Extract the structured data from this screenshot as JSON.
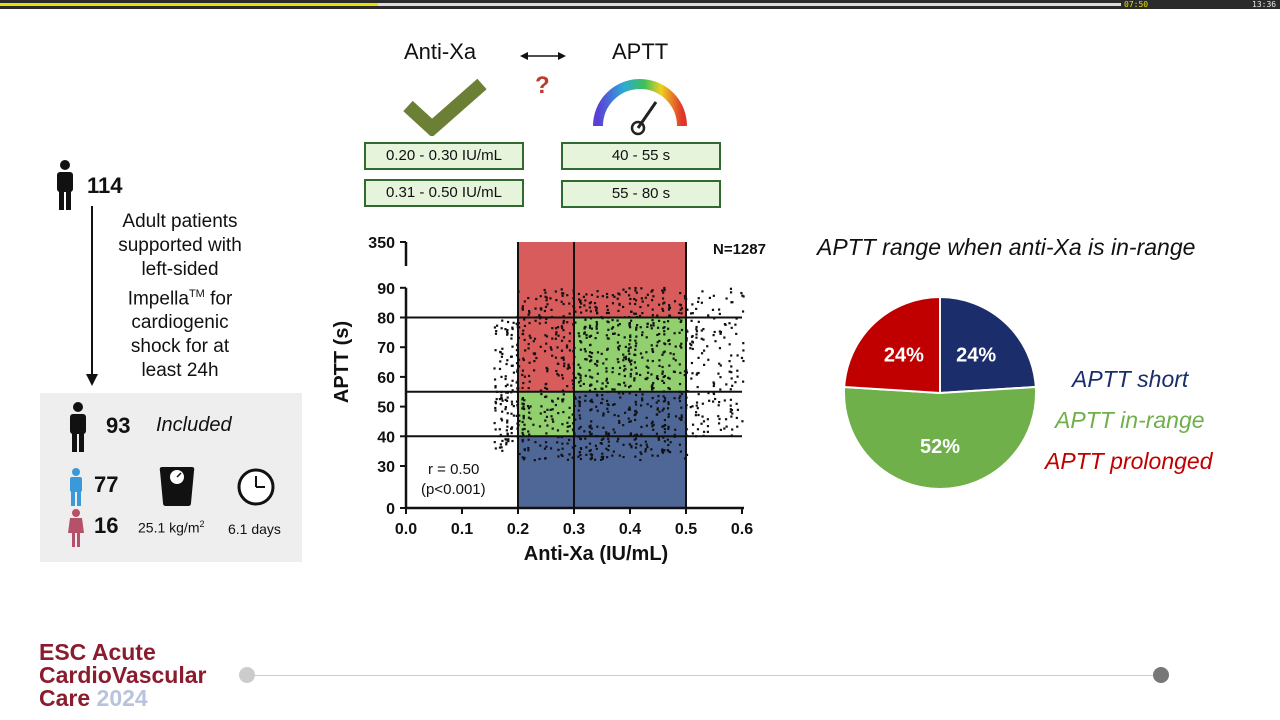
{
  "player": {
    "elapsed": "07:50",
    "total": "13:36",
    "progress": 0.295,
    "buffered": 0.876
  },
  "header": {
    "antixa_label": "Anti-Xa",
    "aptt_label": "APTT",
    "question_mark": "?",
    "antixa_ranges": [
      "0.20 - 0.30 IU/mL",
      "0.31 - 0.50 IU/mL"
    ],
    "aptt_ranges": [
      "40 - 55 s",
      "55 - 80 s"
    ],
    "icons": [
      "check-icon",
      "double-arrow-icon",
      "gauge-icon"
    ],
    "colors": {
      "check": "#6b7f35",
      "question": "#c0392b"
    }
  },
  "patients": {
    "total": "114",
    "description": [
      "Adult patients",
      "supported with",
      "left-sided",
      "Impella",
      "TM",
      " for",
      "cardiogenic",
      "shock for at",
      "least 24h"
    ],
    "included": "93",
    "included_label": "Included",
    "male": "77",
    "female": "16",
    "bmi": "25.1 kg/m",
    "bmi_sup": "2",
    "duration": "6.1 days",
    "icons": [
      "person-icon",
      "down-arrow-icon",
      "male-icon",
      "female-icon",
      "scale-icon",
      "clock-icon"
    ],
    "colors": {
      "male": "#3a9ad9",
      "female": "#b5526a"
    }
  },
  "chart_data": [
    {
      "type": "scatter",
      "title": "",
      "xlabel": "Anti-Xa (IU/mL)",
      "ylabel": "APTT (s)",
      "xlim": [
        0.0,
        0.6
      ],
      "x_ticks": [
        "0.0",
        "0.1",
        "0.2",
        "0.3",
        "0.4",
        "0.5",
        "0.6"
      ],
      "y_ticks": [
        "0",
        "30",
        "40",
        "50",
        "60",
        "70",
        "80",
        "90",
        "350"
      ],
      "axis_break": [
        90,
        350
      ],
      "n_label": "N=1287",
      "annotation": [
        "r = 0.50",
        "(p<0.001)"
      ],
      "vertical_lines": [
        0.2,
        0.3,
        0.5
      ],
      "horizontal_lines": [
        40,
        55,
        80
      ],
      "regions": [
        {
          "x": [
            0.2,
            0.5
          ],
          "y": [
            80,
            350
          ],
          "color": "#d95c5c"
        },
        {
          "x": [
            0.2,
            0.3
          ],
          "y": [
            55,
            80
          ],
          "color": "#d95c5c"
        },
        {
          "x": [
            0.3,
            0.5
          ],
          "y": [
            55,
            80
          ],
          "color": "#92cf6f"
        },
        {
          "x": [
            0.2,
            0.3
          ],
          "y": [
            40,
            55
          ],
          "color": "#92cf6f"
        },
        {
          "x": [
            0.3,
            0.5
          ],
          "y": [
            40,
            55
          ],
          "color": "#4f6797"
        },
        {
          "x": [
            0.2,
            0.5
          ],
          "y": [
            0,
            40
          ],
          "color": "#4f6797"
        }
      ],
      "point_clusters": [
        {
          "x": [
            0.16,
            0.2
          ],
          "y": [
            35,
            80
          ],
          "count": 120
        },
        {
          "x": [
            0.2,
            0.3
          ],
          "y": [
            32,
            90
          ],
          "count": 260
        },
        {
          "x": [
            0.3,
            0.5
          ],
          "y": [
            32,
            90
          ],
          "count": 620
        },
        {
          "x": [
            0.5,
            0.6
          ],
          "y": [
            40,
            90
          ],
          "count": 160
        }
      ]
    },
    {
      "type": "pie",
      "title": "APTT range when anti-Xa is in-range",
      "slices": [
        {
          "label": "APTT short",
          "value": 24,
          "display": "24%",
          "color": "#1b2e6b"
        },
        {
          "label": "APTT in-range",
          "value": 52,
          "display": "52%",
          "color": "#6fb04a"
        },
        {
          "label": "APTT prolonged",
          "value": 24,
          "display": "24%",
          "color": "#c00000"
        }
      ]
    }
  ],
  "logo": {
    "line1": "ESC Acute",
    "line2": "CardioVascular",
    "line3": "Care",
    "year": "2024",
    "color": "#8b1c2e"
  }
}
